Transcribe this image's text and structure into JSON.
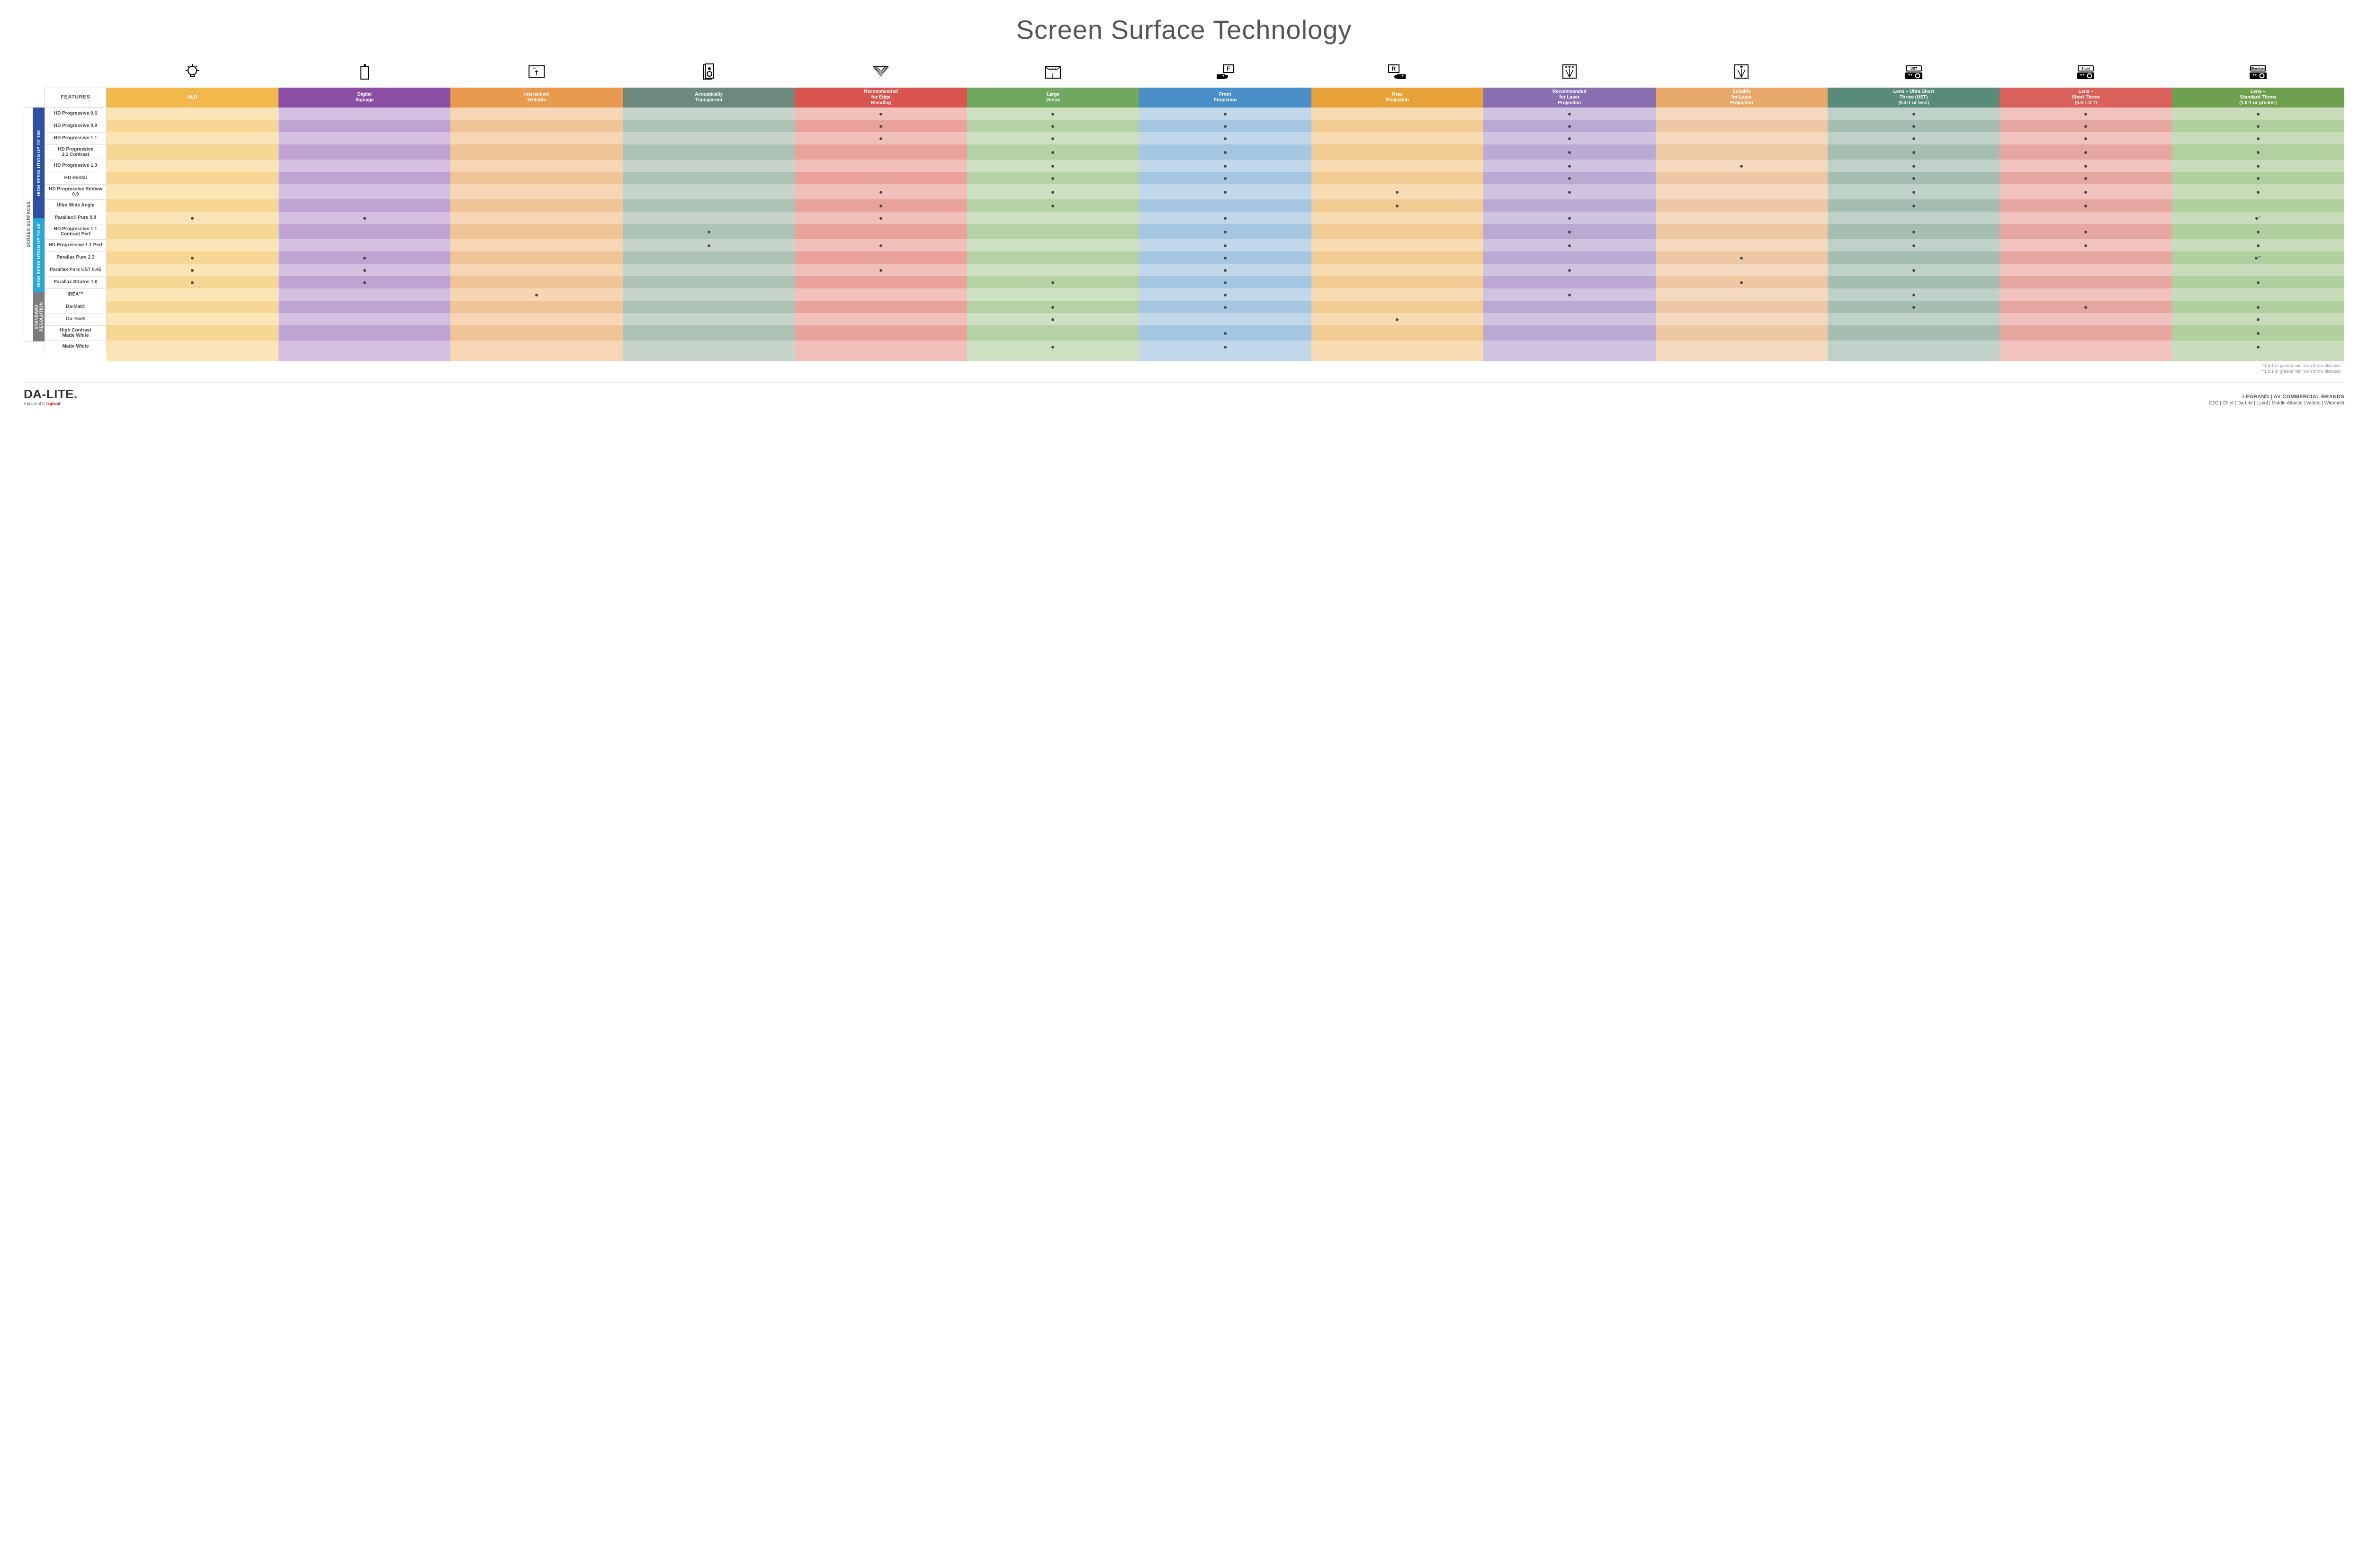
{
  "title": "Screen Surface Technology",
  "featuresHeader": "FEATURES",
  "columns": [
    {
      "label": "ALR",
      "color": "#f2b84b",
      "icon": "bulb"
    },
    {
      "label": "Digital\nSignage",
      "color": "#8a4fa3",
      "icon": "signage"
    },
    {
      "label": "Interactive/\nWritable",
      "color": "#e89a4f",
      "icon": "touch"
    },
    {
      "label": "Acoustically\nTransparent",
      "color": "#6e8a7e",
      "icon": "speaker"
    },
    {
      "label": "Recommended\nfor Edge\nBlending",
      "color": "#d9534f",
      "icon": "blend"
    },
    {
      "label": "Large\nVenue",
      "color": "#6fa85e",
      "icon": "venue"
    },
    {
      "label": "Front\nProjection",
      "color": "#4a8fc7",
      "icon": "front"
    },
    {
      "label": "Rear\nProjection",
      "color": "#e8a23a",
      "icon": "rear"
    },
    {
      "label": "Recommended\nfor Laser\nProjection",
      "color": "#8a6fb0",
      "icon": "laser3"
    },
    {
      "label": "Suitable\nfor Laser\nProjection",
      "color": "#e8a86a",
      "icon": "laser1"
    },
    {
      "label": "Lens – Ultra Short\nThrow (UST)\n(0.4:1 or less)",
      "color": "#5a8a7a",
      "icon": "projUST",
      "pl": "UST"
    },
    {
      "label": "Lens –\nShort Throw\n(0.4-1.0:1)",
      "color": "#d9605b",
      "icon": "projShort",
      "pl": "Short"
    },
    {
      "label": "Lens –\nStandard Throw\n(1.0:1 or greater)",
      "color": "#6fa04f",
      "icon": "projStd",
      "pl": "Standard"
    }
  ],
  "bodyTints": {
    "light": [
      "#fbe4b5",
      "#d4bfe0",
      "#f6d6b5",
      "#c7d4cc",
      "#f2c0bb",
      "#cde0c0",
      "#c1d7ea",
      "#f7dbb3",
      "#d0c3e0",
      "#f5d9bf",
      "#bfd1c8",
      "#f0c3bf",
      "#c8dcb9"
    ],
    "dark": [
      "#f5d693",
      "#bfa3d1",
      "#efc497",
      "#aec2b6",
      "#e9a39c",
      "#b6d1a4",
      "#a5c6e0",
      "#f0cb93",
      "#bba9d3",
      "#eec8a5",
      "#a6beb2",
      "#e6a7a1",
      "#b1d09f"
    ]
  },
  "outerLabel": "SCREEN SURFACES",
  "groups": [
    {
      "label": "HIGH RESOLUTION UP TO 16K",
      "color": "#2e4fa3",
      "rows": [
        {
          "name": "HD Progressive 0.6",
          "dots": [
            0,
            0,
            0,
            0,
            1,
            1,
            1,
            0,
            1,
            0,
            1,
            1,
            1
          ]
        },
        {
          "name": "HD Progressive 0.9",
          "dots": [
            0,
            0,
            0,
            0,
            1,
            1,
            1,
            0,
            1,
            0,
            1,
            1,
            1
          ]
        },
        {
          "name": "HD Progressive 1.1",
          "dots": [
            0,
            0,
            0,
            0,
            1,
            1,
            1,
            0,
            1,
            0,
            1,
            1,
            1
          ]
        },
        {
          "name": "HD Progressive\n1.1 Contrast",
          "dots": [
            0,
            0,
            0,
            0,
            0,
            1,
            1,
            0,
            1,
            0,
            1,
            1,
            1
          ]
        },
        {
          "name": "HD Progressive 1.3",
          "dots": [
            0,
            0,
            0,
            0,
            0,
            1,
            1,
            0,
            1,
            1,
            1,
            1,
            1
          ]
        },
        {
          "name": "HD Rental",
          "dots": [
            0,
            0,
            0,
            0,
            0,
            1,
            1,
            0,
            1,
            0,
            1,
            1,
            1
          ]
        },
        {
          "name": "HD Progressive ReView 0.9",
          "dots": [
            0,
            0,
            0,
            0,
            1,
            1,
            1,
            1,
            1,
            0,
            1,
            1,
            1
          ]
        },
        {
          "name": "Ultra Wide Angle",
          "dots": [
            0,
            0,
            0,
            0,
            1,
            1,
            0,
            1,
            0,
            0,
            1,
            1,
            0
          ]
        },
        {
          "name": "Parallax® Pure 0.8",
          "dots": [
            1,
            1,
            0,
            0,
            1,
            0,
            1,
            0,
            1,
            0,
            0,
            0,
            1
          ],
          "note": "*"
        }
      ]
    },
    {
      "label": "HIGH RESOLUTION UP TO 4K",
      "color": "#2aa7d4",
      "rows": [
        {
          "name": "HD Progressive 1.1\nContrast Perf",
          "dots": [
            0,
            0,
            0,
            1,
            0,
            0,
            1,
            0,
            1,
            0,
            1,
            1,
            1
          ]
        },
        {
          "name": "HD Progressive 1.1 Perf",
          "dots": [
            0,
            0,
            0,
            1,
            1,
            0,
            1,
            0,
            1,
            0,
            1,
            1,
            1
          ]
        },
        {
          "name": "Parallax Pure 2.3",
          "dots": [
            1,
            1,
            0,
            0,
            0,
            0,
            1,
            0,
            0,
            1,
            0,
            0,
            1
          ],
          "note": "**"
        },
        {
          "name": "Parallax Pure UST 0.45",
          "dots": [
            1,
            1,
            0,
            0,
            1,
            0,
            1,
            0,
            1,
            0,
            1,
            0,
            0
          ]
        },
        {
          "name": "Parallax Stratos 1.0",
          "dots": [
            1,
            1,
            0,
            0,
            0,
            1,
            1,
            0,
            0,
            1,
            0,
            0,
            1
          ]
        },
        {
          "name": "IDEA™",
          "dots": [
            0,
            0,
            1,
            0,
            0,
            0,
            1,
            0,
            1,
            0,
            1,
            0,
            0
          ]
        }
      ]
    },
    {
      "label": "STANDARD\nRESOLUTION",
      "color": "#7a7d80",
      "rows": [
        {
          "name": "Da-Mat®",
          "dots": [
            0,
            0,
            0,
            0,
            0,
            1,
            1,
            0,
            0,
            0,
            1,
            1,
            1
          ]
        },
        {
          "name": "Da-Tex®",
          "dots": [
            0,
            0,
            0,
            0,
            0,
            1,
            0,
            1,
            0,
            0,
            0,
            0,
            1
          ]
        },
        {
          "name": "High Contrast\nMatte White",
          "dots": [
            0,
            0,
            0,
            0,
            0,
            0,
            1,
            0,
            0,
            0,
            0,
            0,
            1
          ]
        },
        {
          "name": "Matte White",
          "dots": [
            0,
            0,
            0,
            0,
            0,
            1,
            1,
            0,
            0,
            0,
            0,
            0,
            1
          ]
        }
      ]
    }
  ],
  "footnotes": [
    "*1.5:1 or greater minimum throw distance",
    "**1.8:1 or greater minimum throw distance"
  ],
  "footer": {
    "logo": "DA-LITE.",
    "logoSubPrefix": "A brand of ",
    "logoSubBrand": "legrand",
    "brandsTitle": "LEGRAND | AV COMMERCIAL BRANDS",
    "brandsList": "C2G  |  Chief  |  Da-Lite  |  Luxul  |  Middle Atlantic  |  Vaddio  |  Wiremold"
  }
}
